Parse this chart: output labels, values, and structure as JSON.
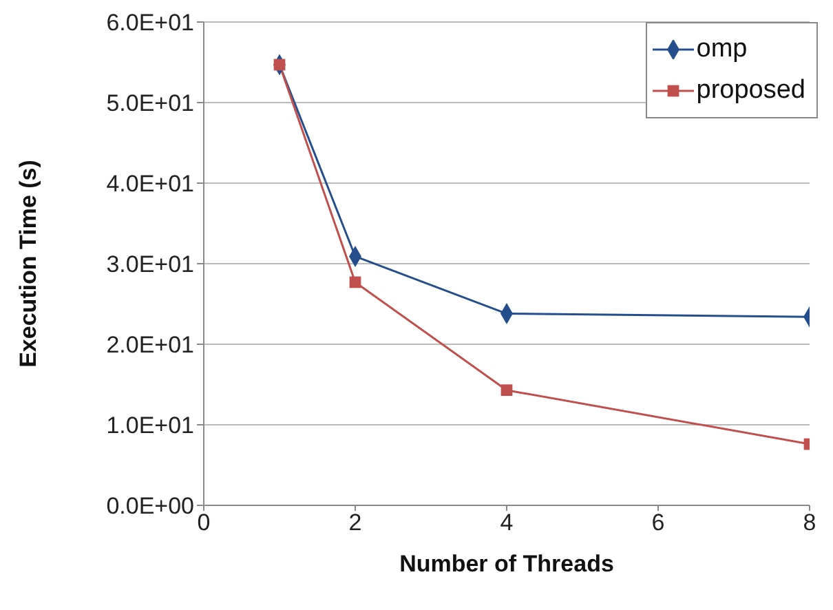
{
  "chart_data": {
    "type": "line",
    "xlabel": "Number of Threads",
    "ylabel": "Execution Time (s)",
    "x": [
      1,
      2,
      4,
      8
    ],
    "series": [
      {
        "name": "omp",
        "color": "#254f8c",
        "marker": "diamond",
        "values": [
          54.7,
          30.9,
          23.8,
          23.4
        ]
      },
      {
        "name": "proposed",
        "color": "#c0504d",
        "marker": "square",
        "values": [
          54.7,
          27.7,
          14.3,
          7.6
        ]
      }
    ],
    "xlim": [
      0,
      8
    ],
    "xticks": [
      0,
      2,
      4,
      6,
      8
    ],
    "ylim": [
      0,
      60
    ],
    "yticks": [
      {
        "value": 0,
        "label": "0.0E+00"
      },
      {
        "value": 10,
        "label": "1.0E+01"
      },
      {
        "value": 20,
        "label": "2.0E+01"
      },
      {
        "value": 30,
        "label": "3.0E+01"
      },
      {
        "value": 40,
        "label": "4.0E+01"
      },
      {
        "value": 50,
        "label": "5.0E+01"
      },
      {
        "value": 60,
        "label": "6.0E+01"
      }
    ],
    "grid": "y",
    "legend": "top right",
    "line_style": "solid"
  }
}
